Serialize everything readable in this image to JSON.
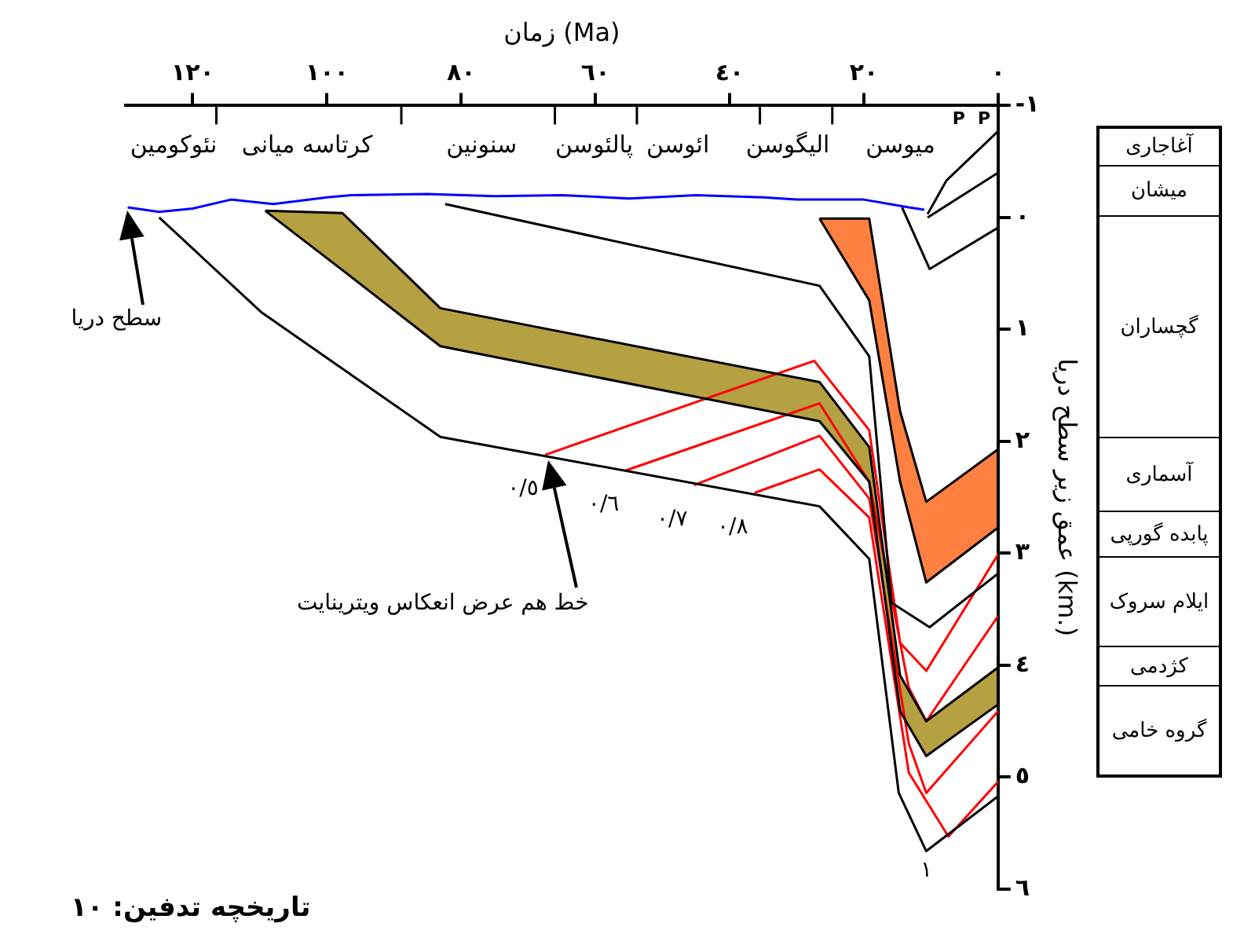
{
  "chart_data": {
    "type": "line",
    "xlabel": "زمان (Ma)",
    "ylabel": "عمق زیر سطح دریا (km.)",
    "xlim": [
      130,
      0
    ],
    "ylim": [
      6,
      -1
    ],
    "xticks": [
      {
        "value": 120,
        "label": "١٢٠"
      },
      {
        "value": 100,
        "label": "١٠٠"
      },
      {
        "value": 80,
        "label": "٨٠"
      },
      {
        "value": 60,
        "label": "٦٠"
      },
      {
        "value": 40,
        "label": "٤٠"
      },
      {
        "value": 20,
        "label": "٢٠"
      },
      {
        "value": 0,
        "label": "٠"
      }
    ],
    "yticks": [
      {
        "value": -1,
        "label": "-١"
      },
      {
        "value": 0,
        "label": "٠"
      },
      {
        "value": 1,
        "label": "١"
      },
      {
        "value": 2,
        "label": "٢"
      },
      {
        "value": 3,
        "label": "٣"
      },
      {
        "value": 4,
        "label": "٤"
      },
      {
        "value": 5,
        "label": "٥"
      },
      {
        "value": 6,
        "label": "٦"
      }
    ],
    "grid": false,
    "legend": false,
    "series": [
      {
        "type": "line",
        "color": "#0000ff",
        "x": [
          129.7,
          125,
          120,
          114.3,
          108,
          100,
          96.4,
          85,
          75,
          65,
          55,
          45,
          35,
          30,
          20,
          13.3,
          11
        ],
        "values": [
          -0.09,
          -0.05,
          -0.08,
          -0.16,
          -0.12,
          -0.18,
          -0.2,
          -0.21,
          -0.19,
          -0.2,
          -0.17,
          -0.2,
          -0.18,
          -0.16,
          -0.16,
          -0.09,
          -0.07
        ]
      },
      {
        "type": "line",
        "color": "#000000",
        "x": [
          125,
          109.7,
          83.1,
          26.6,
          19.2,
          14.8,
          10.7,
          0
        ],
        "values": [
          0,
          0.85,
          1.96,
          2.58,
          3.05,
          5.14,
          5.66,
          5.17
        ]
      },
      {
        "type": "line",
        "color": "#000000",
        "x": [
          82.4,
          26.6,
          19.2,
          15.9,
          10.2,
          0
        ],
        "values": [
          -0.12,
          0.61,
          1.24,
          3.44,
          3.66,
          3.18
        ]
      },
      {
        "type": "line",
        "color": "#000000",
        "x": [
          14.3,
          10.2,
          0
        ],
        "values": [
          -0.09,
          0.46,
          0.09
        ]
      },
      {
        "type": "line",
        "color": "#000000",
        "x": [
          10.5,
          7.7,
          0
        ],
        "values": [
          -0.03,
          -0.33,
          -0.77
        ]
      },
      {
        "type": "line",
        "color": "#000000",
        "x": [
          10.5,
          0
        ],
        "values": [
          0,
          -0.4
        ]
      },
      {
        "type": "line",
        "color": "#000000",
        "x": [
          109.2,
          97.7,
          83.1,
          26.6,
          19.2,
          14.6,
          10.7,
          0
        ],
        "values": [
          -0.06,
          -0.04,
          0.81,
          1.47,
          2.05,
          4.09,
          4.5,
          4.02
        ]
      },
      {
        "type": "line",
        "color": "#000000",
        "x": [
          109.2,
          97.7,
          83.1,
          26.6,
          19.2,
          14.6,
          10.7,
          0
        ],
        "values": [
          -0.06,
          0.47,
          1.15,
          1.82,
          2.36,
          4.41,
          4.81,
          4.35
        ]
      },
      {
        "type": "line",
        "color": "#000000",
        "x": [
          26.6,
          19.2,
          14.6,
          10.7,
          0
        ],
        "values": [
          0.01,
          0.01,
          1.73,
          2.54,
          2.07
        ]
      },
      {
        "type": "line",
        "color": "#000000",
        "x": [
          26.6,
          19.2,
          14.6,
          10.7,
          0
        ],
        "values": [
          0.01,
          0.74,
          2.36,
          3.26,
          2.77
        ]
      },
      {
        "type": "line",
        "color": "#ff0000",
        "x": [
          67.5,
          27.4,
          19.2,
          14.6,
          10.7,
          0
        ],
        "values": [
          2.12,
          1.28,
          1.9,
          3.8,
          4.05,
          3.01
        ]
      },
      {
        "type": "line",
        "color": "#ff0000",
        "x": [
          55.5,
          26.6,
          19.2,
          13.3,
          10.7,
          0
        ],
        "values": [
          2.26,
          1.66,
          2.36,
          4.2,
          4.5,
          3.56
        ]
      },
      {
        "type": "line",
        "color": "#ff0000",
        "x": [
          45.3,
          26.6,
          19.2,
          13.3,
          10.7,
          0
        ],
        "values": [
          2.39,
          1.95,
          2.51,
          4.7,
          5.14,
          4.41
        ]
      },
      {
        "type": "line",
        "color": "#ff0000",
        "x": [
          36.3,
          26.6,
          19.2,
          13.3,
          7.4,
          0
        ],
        "values": [
          2.46,
          2.25,
          2.68,
          4.96,
          5.53,
          5.04
        ]
      }
    ],
    "annotations": [
      {
        "text": "٠/٥",
        "x": 67.5,
        "y": 2.12
      },
      {
        "text": "٠/٦",
        "x": 55.5,
        "y": 2.26
      },
      {
        "text": "٠/٧",
        "x": 45.3,
        "y": 2.39
      },
      {
        "text": "٠/٨",
        "x": 36.3,
        "y": 2.46
      },
      {
        "text": "١",
        "x": 7.4,
        "y": 5.53
      },
      "نئوکومین",
      "کرتاسه میانی",
      "سنونین",
      "پالئوسن",
      "ائوسن",
      "الیگوسن",
      "میوسن",
      "P",
      "P",
      "تاریخچه تدفین: ١٠",
      "سطح دریا",
      "خط هم عرض انعکاس ویترینایت",
      "آغاجاری",
      "میشان",
      "گچساران",
      "آسماری",
      "پابده  گورپی",
      "ایلام سروک",
      "کژدمی",
      "گروه خامی"
    ]
  }
}
